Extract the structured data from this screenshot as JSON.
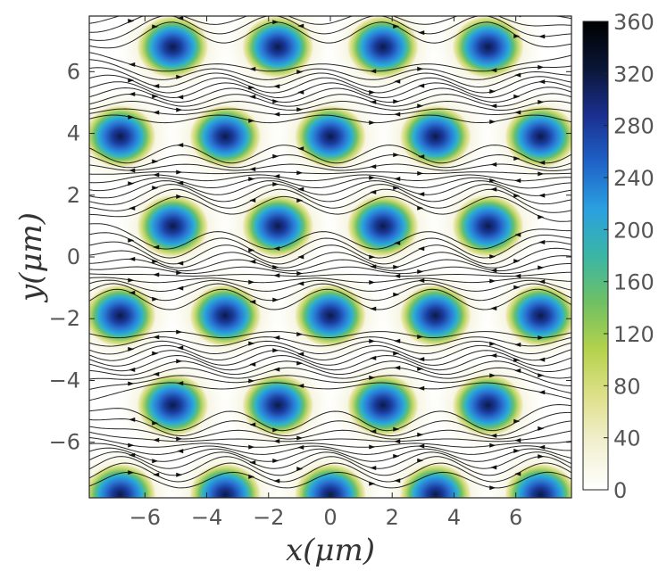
{
  "chart_data": {
    "type": "heatmap",
    "title": "",
    "xlabel": "x(μm)",
    "ylabel": "y(μm)",
    "xlim": [
      -7.8,
      7.8
    ],
    "ylim": [
      -7.8,
      7.8
    ],
    "x_ticks": [
      -6,
      -4,
      -2,
      0,
      2,
      4,
      6
    ],
    "y_ticks": [
      -6,
      -4,
      -2,
      0,
      2,
      4,
      6
    ],
    "x_tick_labels": [
      "−6",
      "−4",
      "−2",
      "0",
      "2",
      "4",
      "6"
    ],
    "y_tick_labels": [
      "−6",
      "−4",
      "−2",
      "0",
      "2",
      "4",
      "6"
    ],
    "colorbar": {
      "min": 0,
      "max": 360,
      "ticks": [
        0,
        40,
        80,
        120,
        160,
        200,
        240,
        280,
        320,
        360
      ],
      "tick_labels": [
        "0",
        "40",
        "80",
        "120",
        "160",
        "200",
        "240",
        "280",
        "320",
        "360"
      ],
      "colormap": [
        "#ffffff",
        "#f2f0d0",
        "#dfe08a",
        "#b4d24c",
        "#6fc063",
        "#3ab6a6",
        "#2aa0e0",
        "#1f62c8",
        "#1a2f8f",
        "#0a1636",
        "#000000"
      ]
    },
    "overlay": "streamlines",
    "peaks": [
      {
        "x": -5.1,
        "y": 6.8,
        "value": 300
      },
      {
        "x": -1.7,
        "y": 6.8,
        "value": 300
      },
      {
        "x": 1.7,
        "y": 6.8,
        "value": 300
      },
      {
        "x": 5.1,
        "y": 6.8,
        "value": 300
      },
      {
        "x": -6.8,
        "y": 3.9,
        "value": 300
      },
      {
        "x": -3.4,
        "y": 3.9,
        "value": 300
      },
      {
        "x": 0.0,
        "y": 3.9,
        "value": 300
      },
      {
        "x": 3.4,
        "y": 3.9,
        "value": 300
      },
      {
        "x": 6.8,
        "y": 3.9,
        "value": 300
      },
      {
        "x": -5.1,
        "y": 1.0,
        "value": 300
      },
      {
        "x": -1.7,
        "y": 1.0,
        "value": 300
      },
      {
        "x": 1.7,
        "y": 1.0,
        "value": 300
      },
      {
        "x": 5.1,
        "y": 1.0,
        "value": 300
      },
      {
        "x": -6.8,
        "y": -1.9,
        "value": 300
      },
      {
        "x": -3.4,
        "y": -1.9,
        "value": 300
      },
      {
        "x": 0.0,
        "y": -1.9,
        "value": 300
      },
      {
        "x": 3.4,
        "y": -1.9,
        "value": 300
      },
      {
        "x": 6.8,
        "y": -1.9,
        "value": 300
      },
      {
        "x": -5.1,
        "y": -4.8,
        "value": 300
      },
      {
        "x": -1.7,
        "y": -4.8,
        "value": 300
      },
      {
        "x": 1.7,
        "y": -4.8,
        "value": 300
      },
      {
        "x": 5.1,
        "y": -4.8,
        "value": 300
      },
      {
        "x": -6.8,
        "y": -7.7,
        "value": 300
      },
      {
        "x": -3.4,
        "y": -7.7,
        "value": 300
      },
      {
        "x": 0.0,
        "y": -7.7,
        "value": 300
      },
      {
        "x": 3.4,
        "y": -7.7,
        "value": 300
      },
      {
        "x": 6.8,
        "y": -7.7,
        "value": 300
      }
    ],
    "grid": false,
    "legend": "none"
  }
}
